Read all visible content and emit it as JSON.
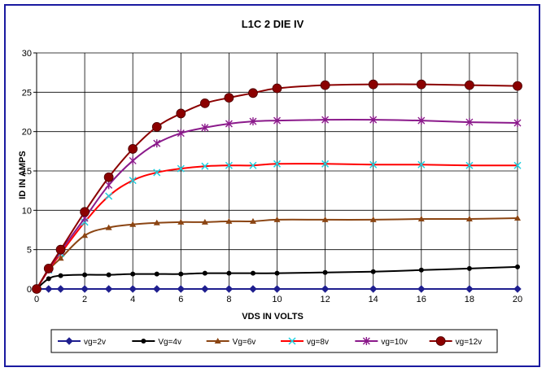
{
  "chart_data": {
    "type": "line",
    "title": "L1C 2 DIE IV",
    "xlabel": "VDS IN VOLTS",
    "ylabel": "ID IN AMPS",
    "xlim": [
      0,
      20
    ],
    "ylim": [
      0,
      30
    ],
    "x_ticks": [
      "0",
      "2",
      "4",
      "6",
      "8",
      "10",
      "12",
      "14",
      "16",
      "18",
      "20"
    ],
    "y_ticks": [
      "0",
      "5",
      "10",
      "15",
      "20",
      "25",
      "30"
    ],
    "grid": "horizontal and vertical",
    "legend_position": "bottom",
    "series": [
      {
        "name": "vg=2v",
        "color": "#1f1f8f",
        "marker": "diamond",
        "x": [
          0,
          0.5,
          1,
          2,
          3,
          4,
          5,
          6,
          7,
          8,
          9,
          10,
          12,
          14,
          16,
          18,
          20
        ],
        "y": [
          0,
          0,
          0,
          0,
          0,
          0,
          0,
          0,
          0,
          0,
          0,
          0,
          0,
          0,
          0,
          0,
          0
        ]
      },
      {
        "name": "Vg=4v",
        "color": "#000000",
        "marker": "circle-small",
        "x": [
          0,
          0.5,
          1,
          2,
          3,
          4,
          5,
          6,
          7,
          8,
          9,
          10,
          12,
          14,
          16,
          18,
          20
        ],
        "y": [
          0,
          1.3,
          1.7,
          1.8,
          1.8,
          1.9,
          1.9,
          1.9,
          2.0,
          2.0,
          2.0,
          2.0,
          2.1,
          2.2,
          2.4,
          2.6,
          2.8
        ]
      },
      {
        "name": "Vg=6v",
        "color": "#8b4513",
        "marker": "triangle",
        "x": [
          0,
          0.5,
          1,
          2,
          3,
          4,
          5,
          6,
          7,
          8,
          9,
          10,
          12,
          14,
          16,
          18,
          20
        ],
        "y": [
          0,
          2.4,
          3.9,
          6.8,
          7.8,
          8.2,
          8.4,
          8.5,
          8.5,
          8.6,
          8.6,
          8.8,
          8.8,
          8.8,
          8.9,
          8.9,
          9.0
        ]
      },
      {
        "name": "vg=8v",
        "color": "#ff0000",
        "marker": "cross",
        "x": [
          0,
          0.5,
          1,
          2,
          3,
          4,
          5,
          6,
          7,
          8,
          9,
          10,
          12,
          14,
          16,
          18,
          20
        ],
        "y": [
          0,
          2.4,
          4.5,
          8.5,
          11.8,
          13.8,
          14.8,
          15.3,
          15.6,
          15.7,
          15.7,
          15.9,
          15.9,
          15.8,
          15.8,
          15.7,
          15.7
        ]
      },
      {
        "name": "vg=10v",
        "color": "#8b1a8b",
        "marker": "star",
        "x": [
          0,
          0.5,
          1,
          2,
          3,
          4,
          5,
          6,
          7,
          8,
          9,
          10,
          12,
          14,
          16,
          18,
          20
        ],
        "y": [
          0,
          2.5,
          4.8,
          9.0,
          13.2,
          16.3,
          18.5,
          19.8,
          20.5,
          21.0,
          21.3,
          21.4,
          21.5,
          21.5,
          21.4,
          21.2,
          21.1
        ]
      },
      {
        "name": "vg=12v",
        "color": "#8b0000",
        "marker": "circle-large",
        "x": [
          0,
          0.5,
          1,
          2,
          3,
          4,
          5,
          6,
          7,
          8,
          9,
          10,
          12,
          14,
          16,
          18,
          20
        ],
        "y": [
          0,
          2.6,
          5.0,
          9.8,
          14.2,
          17.8,
          20.6,
          22.3,
          23.6,
          24.3,
          24.9,
          25.5,
          25.9,
          26.0,
          26.0,
          25.9,
          25.8
        ]
      }
    ]
  }
}
